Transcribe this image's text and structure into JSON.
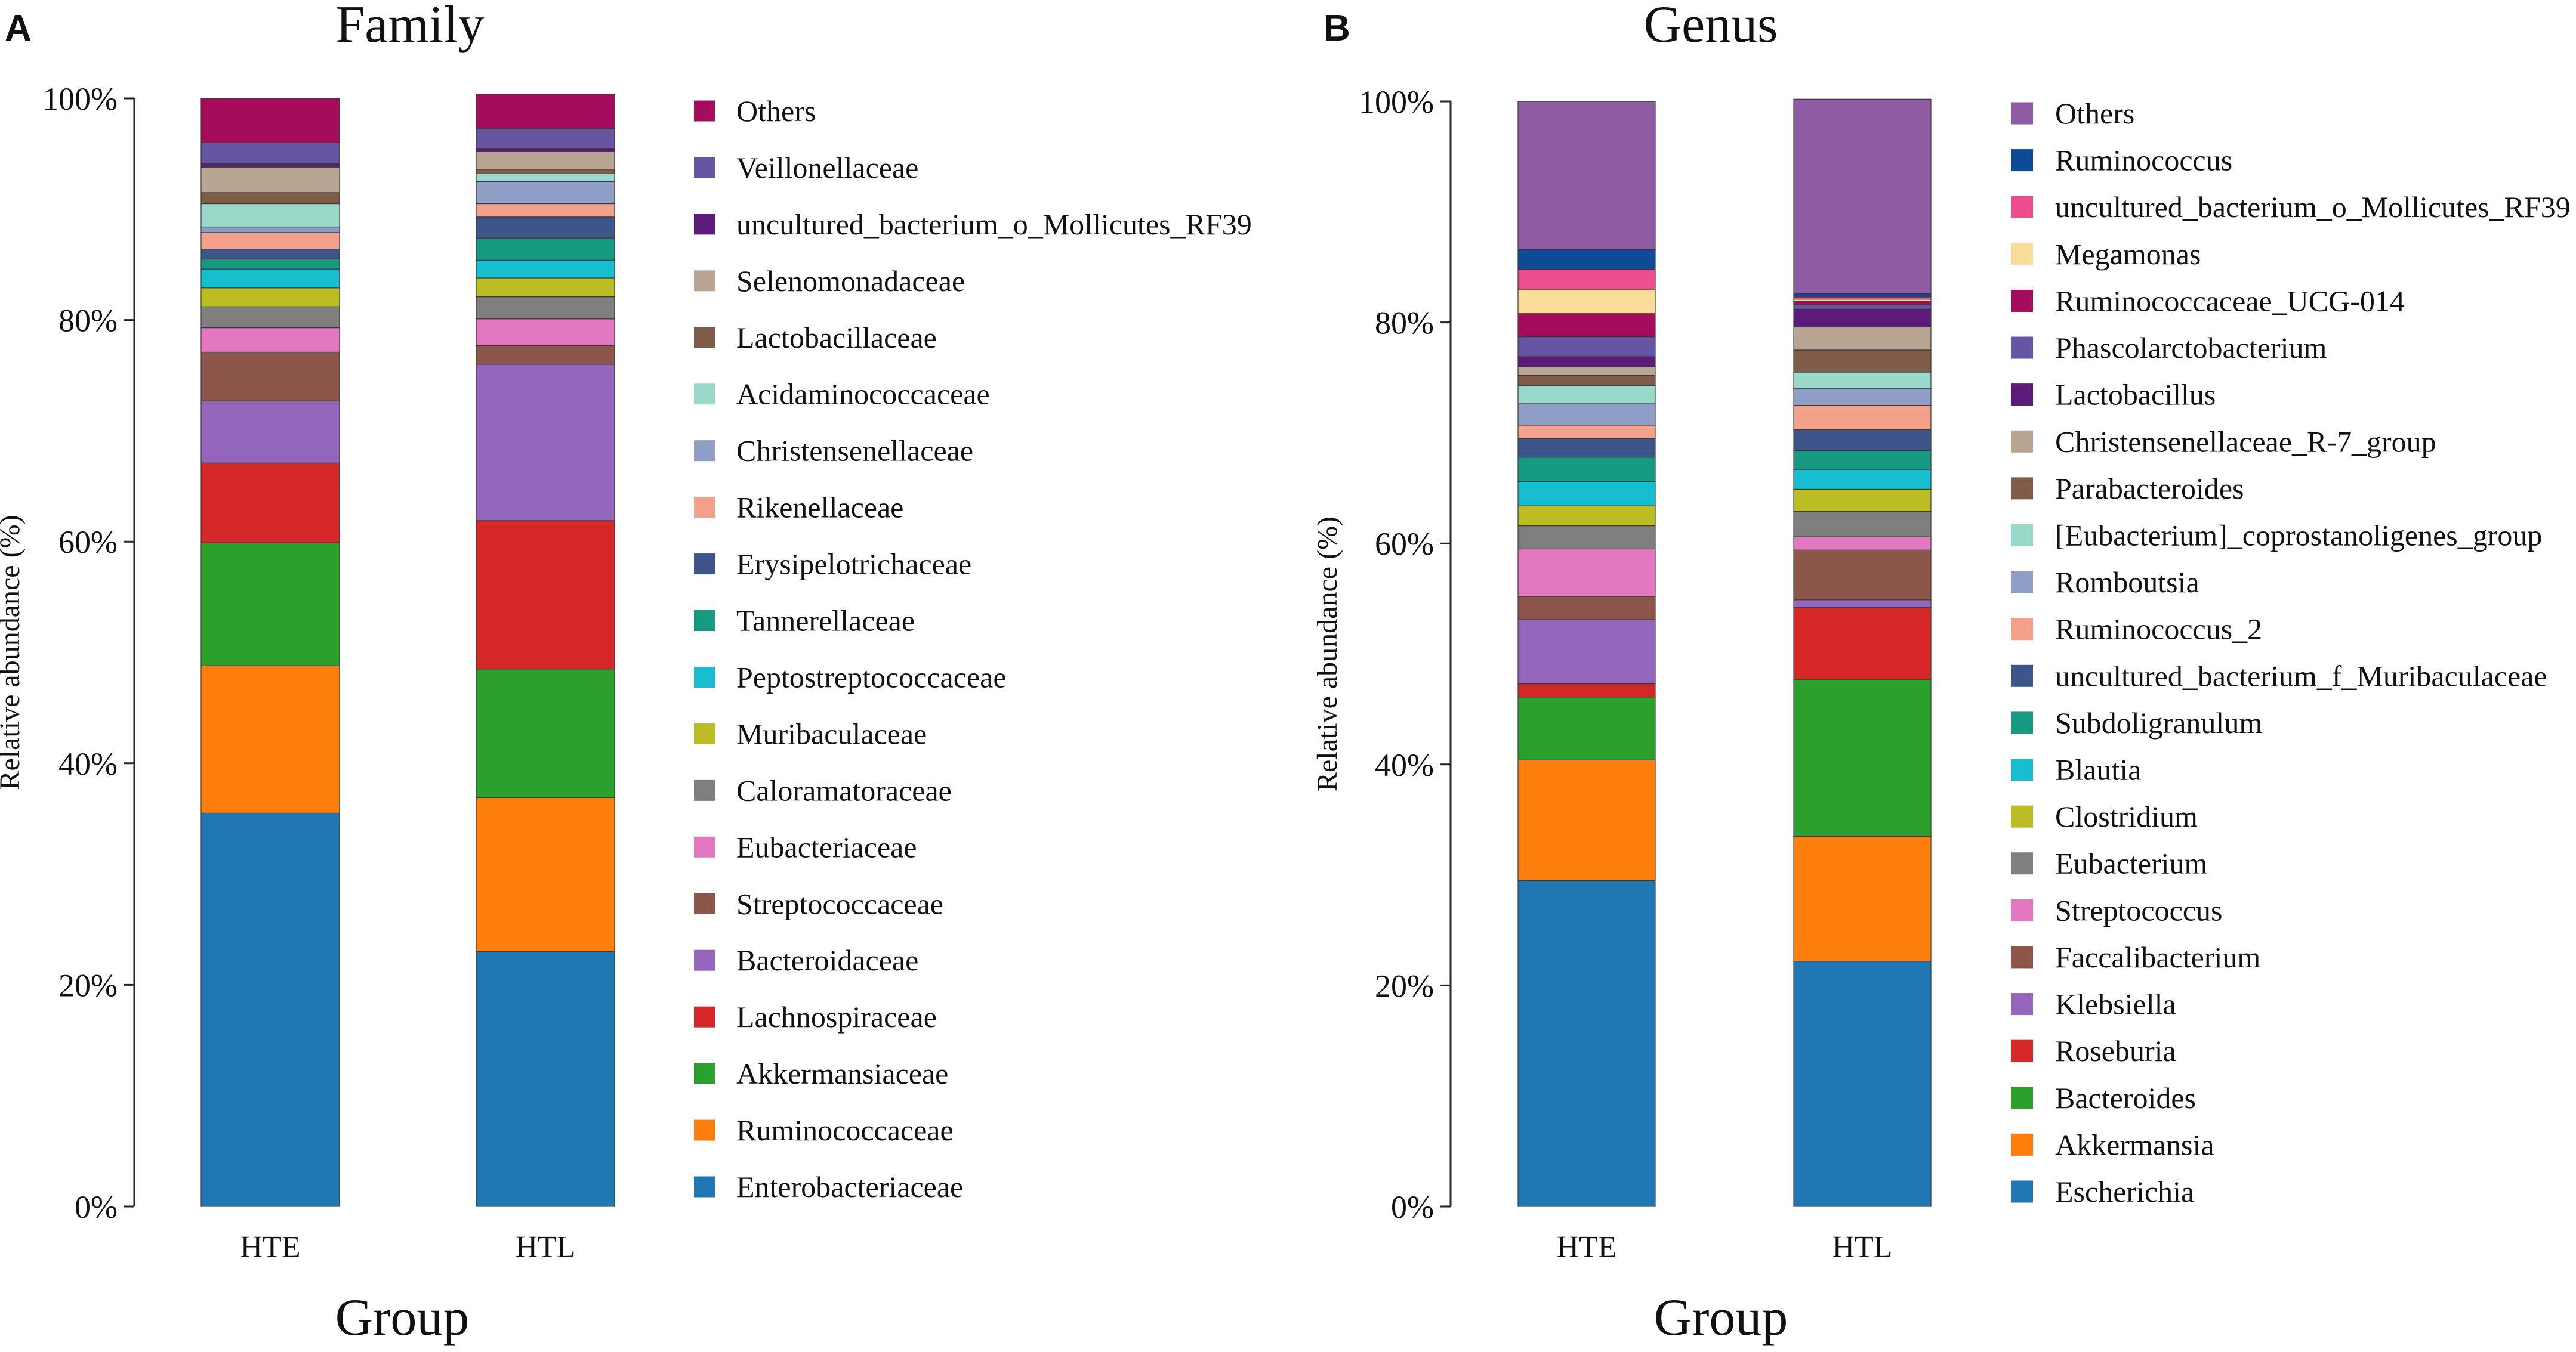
{
  "chart_data": [
    {
      "type": "bar",
      "stacked": true,
      "panel_label": "A",
      "title": "Family",
      "xlabel": "Group",
      "ylabel": "Relative abundance (%)",
      "ylim": [
        0,
        100
      ],
      "yticks": [
        "0%",
        "20%",
        "40%",
        "60%",
        "80%",
        "100%"
      ],
      "categories": [
        "HTE",
        "HTL"
      ],
      "series": [
        {
          "name": "Enterobacteriaceae",
          "color": "#1f77b4",
          "values": [
            35.5,
            23.0
          ]
        },
        {
          "name": "Ruminococcaceae",
          "color": "#ff7f0e",
          "values": [
            13.3,
            13.9
          ]
        },
        {
          "name": "Akkermansiaceae",
          "color": "#2ca02c",
          "values": [
            11.1,
            11.6
          ]
        },
        {
          "name": "Lachnospiraceae",
          "color": "#d62728",
          "values": [
            7.2,
            13.4
          ]
        },
        {
          "name": "Bacteroidaceae",
          "color": "#9467bd",
          "values": [
            5.6,
            14.1
          ]
        },
        {
          "name": "Streptococcaceae",
          "color": "#8c564b",
          "values": [
            4.4,
            1.7
          ]
        },
        {
          "name": "Eubacteriaceae",
          "color": "#e377c2",
          "values": [
            2.2,
            2.4
          ]
        },
        {
          "name": "Caloramatoraceae",
          "color": "#7f7f7f",
          "values": [
            1.9,
            2.0
          ]
        },
        {
          "name": "Muribaculaceae",
          "color": "#bcbd22",
          "values": [
            1.7,
            1.7
          ]
        },
        {
          "name": "Peptostreptococcaceae",
          "color": "#17becf",
          "values": [
            1.7,
            1.6
          ]
        },
        {
          "name": "Tannerellaceae",
          "color": "#169b82",
          "values": [
            0.9,
            2.0
          ]
        },
        {
          "name": "Erysipelotrichaceae",
          "color": "#3d5588",
          "values": [
            0.9,
            1.9
          ]
        },
        {
          "name": "Rikenellaceae",
          "color": "#f4a18b",
          "values": [
            1.5,
            1.2
          ]
        },
        {
          "name": "Christensenellaceae",
          "color": "#8e9ec4",
          "values": [
            0.5,
            2.0
          ]
        },
        {
          "name": "Acidaminococcaceae",
          "color": "#98d9c9",
          "values": [
            2.1,
            0.7
          ]
        },
        {
          "name": "Lactobacillaceae",
          "color": "#7f5c49",
          "values": [
            1.0,
            0.4
          ]
        },
        {
          "name": "Selenomonadaceae",
          "color": "#b8a592",
          "values": [
            2.3,
            1.6
          ]
        },
        {
          "name": "uncultured_bacterium_o_Mollicutes_RF39",
          "color": "#5c1a7a",
          "values": [
            0.3,
            0.3
          ]
        },
        {
          "name": "Veillonellaceae",
          "color": "#6555a2",
          "values": [
            1.9,
            1.8
          ]
        },
        {
          "name": "Others",
          "color": "#a30d5c",
          "values": [
            4.0,
            3.1
          ]
        }
      ]
    },
    {
      "type": "bar",
      "stacked": true,
      "panel_label": "B",
      "title": "Genus",
      "xlabel": "Group",
      "ylabel": "Relative abundance (%)",
      "ylim": [
        0,
        100
      ],
      "yticks": [
        "0%",
        "20%",
        "40%",
        "60%",
        "80%",
        "100%"
      ],
      "categories": [
        "HTE",
        "HTL"
      ],
      "series": [
        {
          "name": "Escherichia",
          "color": "#1f77b4",
          "values": [
            29.5,
            22.2
          ]
        },
        {
          "name": "Akkermansia",
          "color": "#ff7f0e",
          "values": [
            10.9,
            11.3
          ]
        },
        {
          "name": "Bacteroides",
          "color": "#2ca02c",
          "values": [
            5.7,
            14.2
          ]
        },
        {
          "name": "Roseburia",
          "color": "#d62728",
          "values": [
            1.2,
            6.5
          ]
        },
        {
          "name": "Klebsiella",
          "color": "#9467bd",
          "values": [
            5.8,
            0.7
          ]
        },
        {
          "name": "Faccalibacterium",
          "color": "#8c564b",
          "values": [
            2.1,
            4.5
          ]
        },
        {
          "name": "Streptococcus",
          "color": "#e377c2",
          "values": [
            4.3,
            1.2
          ]
        },
        {
          "name": "Eubacterium",
          "color": "#7f7f7f",
          "values": [
            2.1,
            2.3
          ]
        },
        {
          "name": "Clostridium",
          "color": "#bcbd22",
          "values": [
            1.8,
            2.0
          ]
        },
        {
          "name": "Blautia",
          "color": "#17becf",
          "values": [
            2.2,
            1.8
          ]
        },
        {
          "name": "Subdoligranulum",
          "color": "#169b82",
          "values": [
            2.2,
            1.7
          ]
        },
        {
          "name": "uncultured_bacterium_f_Muribaculaceae",
          "color": "#3d5588",
          "values": [
            1.7,
            1.9
          ]
        },
        {
          "name": "Ruminococcus_2",
          "color": "#f4a18b",
          "values": [
            1.2,
            2.2
          ]
        },
        {
          "name": "Romboutsia",
          "color": "#8e9ec4",
          "values": [
            2.0,
            1.5
          ]
        },
        {
          "name": "[Eubacterium]_coprostanoligenes_group",
          "color": "#98d9c9",
          "values": [
            1.6,
            1.5
          ]
        },
        {
          "name": "Parabacteroides",
          "color": "#7f5c49",
          "values": [
            0.9,
            2.0
          ]
        },
        {
          "name": "Christensenellaceae_R-7_group",
          "color": "#b8a592",
          "values": [
            0.8,
            2.1
          ]
        },
        {
          "name": "Lactobacillus",
          "color": "#5c1a7a",
          "values": [
            0.9,
            1.6
          ]
        },
        {
          "name": "Phascolarctobacterium",
          "color": "#6555a2",
          "values": [
            1.8,
            0.4
          ]
        },
        {
          "name": "Ruminococcaceae_UCG-014",
          "color": "#a30d5c",
          "values": [
            2.1,
            0.3
          ]
        },
        {
          "name": "Megamonas",
          "color": "#f8dd98",
          "values": [
            2.2,
            0.2
          ]
        },
        {
          "name": "uncultured_bacterium_o_Mollicutes_RF39",
          "color": "#ec4f8c",
          "values": [
            1.8,
            0.2
          ]
        },
        {
          "name": "Ruminococcus",
          "color": "#0e4a96",
          "values": [
            1.8,
            0.3
          ]
        },
        {
          "name": "Others",
          "color": "#8e5aa2",
          "values": [
            13.4,
            17.6
          ]
        }
      ]
    }
  ]
}
